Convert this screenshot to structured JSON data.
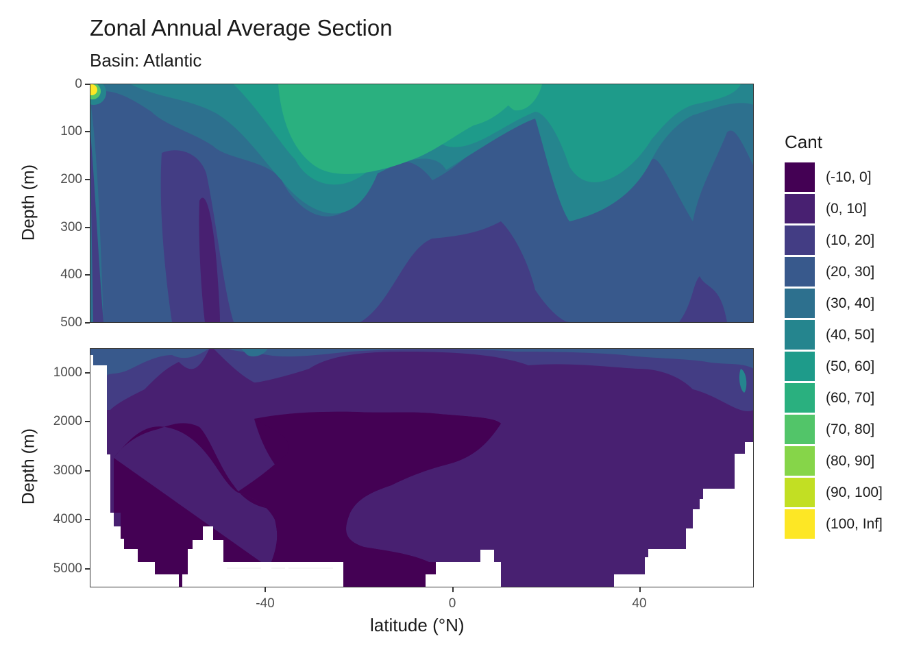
{
  "title": "Zonal Annual Average Section",
  "subtitle": "Basin: Atlantic",
  "xlabel": "latitude (°N)",
  "ylabel_top": "Depth (m)",
  "ylabel_bottom": "Depth (m)",
  "legend": {
    "title": "Cant",
    "entries": [
      {
        "label": "(-10, 0]",
        "color": "#440154"
      },
      {
        "label": "(0, 10]",
        "color": "#482071"
      },
      {
        "label": "(10, 20]",
        "color": "#433d84"
      },
      {
        "label": "(20, 30]",
        "color": "#38598c"
      },
      {
        "label": "(30, 40]",
        "color": "#2d708e"
      },
      {
        "label": "(40, 50]",
        "color": "#25858e"
      },
      {
        "label": "(50, 60]",
        "color": "#1e9b8a"
      },
      {
        "label": "(60, 70]",
        "color": "#2ab07f"
      },
      {
        "label": "(70, 80]",
        "color": "#52c569"
      },
      {
        "label": "(80, 90]",
        "color": "#86d549"
      },
      {
        "label": "(90, 100]",
        "color": "#c2df23"
      },
      {
        "label": "(100, Inf]",
        "color": "#fde725"
      }
    ]
  },
  "chart_data": {
    "type": "heatmap",
    "title": "Zonal Annual Average Section",
    "subtitle": "Basin: Atlantic",
    "xlabel": "latitude (°N)",
    "ylabel": "Depth (m)",
    "xlim": [
      -77,
      65
    ],
    "x_ticks": [
      "-40",
      "0",
      "40"
    ],
    "panels": [
      {
        "name": "upper",
        "ylim": [
          0,
          500
        ],
        "y_ticks": [
          "0",
          "100",
          "200",
          "300",
          "400",
          "500"
        ],
        "y_reversed": true
      },
      {
        "name": "lower",
        "ylim": [
          500,
          5400
        ],
        "y_ticks": [
          "1000",
          "2000",
          "3000",
          "4000",
          "5000"
        ],
        "y_reversed": true
      }
    ],
    "fill_variable": "Cant",
    "fill_bins": [
      "(-10, 0]",
      "(0, 10]",
      "(10, 20]",
      "(20, 30]",
      "(30, 40]",
      "(40, 50]",
      "(50, 60]",
      "(60, 70]",
      "(70, 80]",
      "(80, 90]",
      "(90, 100]",
      "(100, Inf]"
    ],
    "grid": true,
    "legend_position": "right"
  }
}
